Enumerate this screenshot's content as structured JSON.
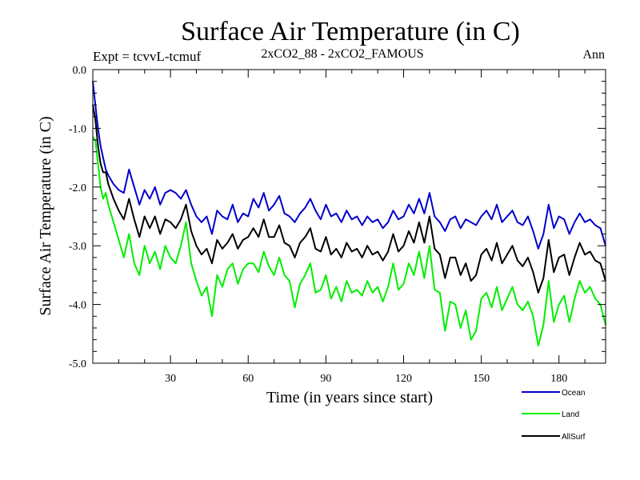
{
  "chart_data": {
    "type": "line",
    "title": "Surface Air Temperature (in C)",
    "subtitle_left": "Expt = tcvvL-tcmuf",
    "subtitle_center": "2xCO2_88 - 2xCO2_FAMOUS",
    "subtitle_right": "Ann",
    "xlabel": "Time (in years since start)",
    "ylabel": "Surface Air Temperature (in C)",
    "xlim": [
      0,
      198
    ],
    "ylim": [
      -5.0,
      0.0
    ],
    "xticks": [
      30,
      60,
      90,
      120,
      150,
      180
    ],
    "xtick_labels": [
      "30",
      "60",
      "90",
      "120",
      "150",
      "180"
    ],
    "yticks": [
      0.0,
      -1.0,
      -2.0,
      -3.0,
      -4.0,
      -5.0
    ],
    "ytick_labels": [
      "0.0",
      "-1.0",
      "-2.0",
      "-3.0",
      "-4.0",
      "-5.0"
    ],
    "grid": false,
    "legend_position": "bottom-right outside plot",
    "series": [
      {
        "name": "Ocean",
        "color": "#0000cc",
        "x": [
          0,
          1,
          2,
          3,
          4,
          5,
          6,
          8,
          10,
          12,
          14,
          16,
          18,
          20,
          22,
          24,
          26,
          28,
          30,
          32,
          34,
          36,
          38,
          40,
          42,
          44,
          46,
          48,
          50,
          52,
          54,
          56,
          58,
          60,
          62,
          64,
          66,
          68,
          70,
          72,
          74,
          76,
          78,
          80,
          82,
          84,
          86,
          88,
          90,
          92,
          94,
          96,
          98,
          100,
          102,
          104,
          106,
          108,
          110,
          112,
          114,
          116,
          118,
          120,
          122,
          124,
          126,
          128,
          130,
          132,
          134,
          136,
          138,
          140,
          142,
          144,
          146,
          148,
          150,
          152,
          154,
          156,
          158,
          160,
          162,
          164,
          166,
          168,
          170,
          172,
          174,
          176,
          178,
          180,
          182,
          184,
          186,
          188,
          190,
          192,
          194,
          196,
          198
        ],
        "values": [
          -0.2,
          -0.6,
          -1.0,
          -1.3,
          -1.5,
          -1.7,
          -1.8,
          -1.95,
          -2.05,
          -2.1,
          -1.7,
          -2.0,
          -2.3,
          -2.05,
          -2.2,
          -2.0,
          -2.3,
          -2.1,
          -2.05,
          -2.1,
          -2.2,
          -2.05,
          -2.3,
          -2.5,
          -2.6,
          -2.5,
          -2.8,
          -2.4,
          -2.5,
          -2.55,
          -2.3,
          -2.6,
          -2.45,
          -2.5,
          -2.2,
          -2.35,
          -2.1,
          -2.4,
          -2.3,
          -2.15,
          -2.45,
          -2.5,
          -2.6,
          -2.45,
          -2.35,
          -2.2,
          -2.4,
          -2.55,
          -2.3,
          -2.5,
          -2.45,
          -2.6,
          -2.4,
          -2.55,
          -2.5,
          -2.65,
          -2.5,
          -2.6,
          -2.55,
          -2.7,
          -2.6,
          -2.4,
          -2.55,
          -2.5,
          -2.3,
          -2.45,
          -2.2,
          -2.45,
          -2.1,
          -2.5,
          -2.6,
          -2.75,
          -2.55,
          -2.5,
          -2.7,
          -2.55,
          -2.6,
          -2.65,
          -2.5,
          -2.4,
          -2.55,
          -2.3,
          -2.6,
          -2.5,
          -2.4,
          -2.6,
          -2.65,
          -2.5,
          -2.75,
          -3.05,
          -2.8,
          -2.3,
          -2.7,
          -2.5,
          -2.55,
          -2.8,
          -2.6,
          -2.45,
          -2.6,
          -2.55,
          -2.65,
          -2.7,
          -3.0
        ]
      },
      {
        "name": "Land",
        "color": "#00ee00",
        "x": [
          0,
          1,
          2,
          3,
          4,
          5,
          6,
          8,
          10,
          12,
          14,
          16,
          18,
          20,
          22,
          24,
          26,
          28,
          30,
          32,
          34,
          36,
          38,
          40,
          42,
          44,
          46,
          48,
          50,
          52,
          54,
          56,
          58,
          60,
          62,
          64,
          66,
          68,
          70,
          72,
          74,
          76,
          78,
          80,
          82,
          84,
          86,
          88,
          90,
          92,
          94,
          96,
          98,
          100,
          102,
          104,
          106,
          108,
          110,
          112,
          114,
          116,
          118,
          120,
          122,
          124,
          126,
          128,
          130,
          132,
          134,
          136,
          138,
          140,
          142,
          144,
          146,
          148,
          150,
          152,
          154,
          156,
          158,
          160,
          162,
          164,
          166,
          168,
          170,
          172,
          174,
          176,
          178,
          180,
          182,
          184,
          186,
          188,
          190,
          192,
          194,
          196,
          198
        ],
        "values": [
          -1.15,
          -1.2,
          -1.6,
          -2.0,
          -2.2,
          -2.1,
          -2.3,
          -2.6,
          -2.9,
          -3.2,
          -2.8,
          -3.3,
          -3.5,
          -3.0,
          -3.3,
          -3.1,
          -3.4,
          -3.0,
          -3.2,
          -3.3,
          -3.0,
          -2.6,
          -3.3,
          -3.6,
          -3.85,
          -3.7,
          -4.2,
          -3.5,
          -3.7,
          -3.4,
          -3.3,
          -3.65,
          -3.4,
          -3.3,
          -3.3,
          -3.45,
          -3.1,
          -3.35,
          -3.5,
          -3.2,
          -3.5,
          -3.6,
          -4.05,
          -3.65,
          -3.5,
          -3.3,
          -3.8,
          -3.75,
          -3.5,
          -3.9,
          -3.7,
          -3.95,
          -3.6,
          -3.8,
          -3.75,
          -3.85,
          -3.6,
          -3.8,
          -3.7,
          -3.95,
          -3.7,
          -3.3,
          -3.75,
          -3.65,
          -3.3,
          -3.5,
          -3.1,
          -3.55,
          -3.0,
          -3.75,
          -3.8,
          -4.45,
          -3.95,
          -4.0,
          -4.4,
          -4.1,
          -4.6,
          -4.45,
          -3.9,
          -3.8,
          -4.05,
          -3.7,
          -4.1,
          -3.9,
          -3.7,
          -4.0,
          -4.1,
          -3.95,
          -4.2,
          -4.7,
          -4.35,
          -3.6,
          -4.3,
          -4.0,
          -3.85,
          -4.3,
          -3.9,
          -3.6,
          -3.8,
          -3.7,
          -3.9,
          -4.0,
          -4.35
        ]
      },
      {
        "name": "AllSurf",
        "color": "#000000",
        "x": [
          0,
          1,
          2,
          3,
          4,
          5,
          6,
          8,
          10,
          12,
          14,
          16,
          18,
          20,
          22,
          24,
          26,
          28,
          30,
          32,
          34,
          36,
          38,
          40,
          42,
          44,
          46,
          48,
          50,
          52,
          54,
          56,
          58,
          60,
          62,
          64,
          66,
          68,
          70,
          72,
          74,
          76,
          78,
          80,
          82,
          84,
          86,
          88,
          90,
          92,
          94,
          96,
          98,
          100,
          102,
          104,
          106,
          108,
          110,
          112,
          114,
          116,
          118,
          120,
          122,
          124,
          126,
          128,
          130,
          132,
          134,
          136,
          138,
          140,
          142,
          144,
          146,
          148,
          150,
          152,
          154,
          156,
          158,
          160,
          162,
          164,
          166,
          168,
          170,
          172,
          174,
          176,
          178,
          180,
          182,
          184,
          186,
          188,
          190,
          192,
          194,
          196,
          198
        ],
        "values": [
          -0.6,
          -0.85,
          -1.3,
          -1.6,
          -1.75,
          -1.75,
          -1.95,
          -2.2,
          -2.4,
          -2.55,
          -2.2,
          -2.55,
          -2.85,
          -2.5,
          -2.7,
          -2.5,
          -2.8,
          -2.55,
          -2.6,
          -2.7,
          -2.55,
          -2.3,
          -2.75,
          -3.0,
          -3.15,
          -3.05,
          -3.3,
          -2.9,
          -3.05,
          -2.95,
          -2.8,
          -3.05,
          -2.9,
          -2.85,
          -2.7,
          -2.85,
          -2.55,
          -2.85,
          -2.85,
          -2.65,
          -2.95,
          -3.0,
          -3.2,
          -2.95,
          -2.85,
          -2.7,
          -3.05,
          -3.1,
          -2.85,
          -3.15,
          -3.05,
          -3.2,
          -2.95,
          -3.1,
          -3.05,
          -3.2,
          -3.0,
          -3.15,
          -3.1,
          -3.25,
          -3.1,
          -2.8,
          -3.1,
          -3.0,
          -2.75,
          -2.95,
          -2.6,
          -2.95,
          -2.5,
          -3.05,
          -3.15,
          -3.55,
          -3.2,
          -3.2,
          -3.5,
          -3.3,
          -3.6,
          -3.5,
          -3.15,
          -3.05,
          -3.25,
          -2.95,
          -3.3,
          -3.15,
          -3.0,
          -3.25,
          -3.35,
          -3.2,
          -3.45,
          -3.8,
          -3.55,
          -2.9,
          -3.45,
          -3.2,
          -3.15,
          -3.5,
          -3.2,
          -2.95,
          -3.15,
          -3.1,
          -3.25,
          -3.3,
          -3.6
        ]
      }
    ]
  }
}
